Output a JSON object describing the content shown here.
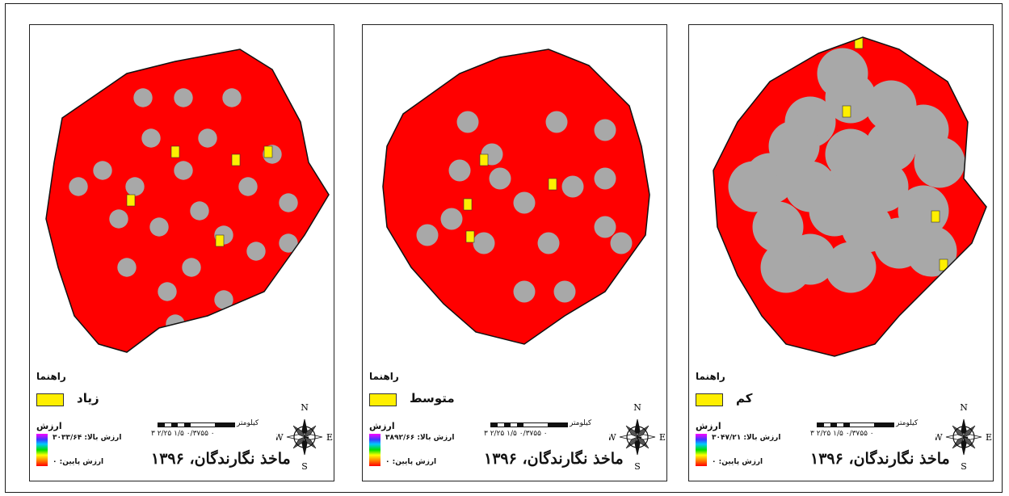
{
  "panels": [
    {
      "id": "high",
      "legend_title": "راهنما",
      "class_label": "زیاد",
      "value_title": "ارزش",
      "high_value": "ارزش بالا: ۳۰۳۳/۶۴",
      "low_value": "ارزش پایین: ۰",
      "scale_unit": "کیلومتر",
      "scale_ticks": "۰ ۰/۳۷۵۵ ۱/۵ ۲/۲۵ ۳",
      "source": "ماخذ نگارندگان، ۱۳۹۶",
      "compass": {
        "n": "N",
        "s": "S",
        "e": "E",
        "w": "W"
      },
      "icon": "north-arrow-compass-icon"
    },
    {
      "id": "medium",
      "legend_title": "راهنما",
      "class_label": "متوسط",
      "value_title": "ارزش",
      "high_value": "ارزش بالا: ۳۸۹۲/۶۶",
      "low_value": "ارزش پایین: ۰",
      "scale_unit": "کیلومتر",
      "scale_ticks": "۰ ۰/۳۷۵۵ ۱/۵ ۲/۲۵ ۳",
      "source": "ماخذ نگارندگان، ۱۳۹۶",
      "compass": {
        "n": "N",
        "s": "S",
        "e": "E",
        "w": "W"
      },
      "icon": "north-arrow-compass-icon"
    },
    {
      "id": "low",
      "legend_title": "راهنما",
      "class_label": "کم",
      "value_title": "ارزش",
      "high_value": "ارزش بالا: ۳۰۴۷/۲۱",
      "low_value": "ارزش پایین: ۰",
      "scale_unit": "کیلومتر",
      "scale_ticks": "۰ ۰/۳۷۵۵ ۱/۵ ۲/۲۵ ۳",
      "source": "ماخذ نگارندگان، ۱۳۹۶",
      "compass": {
        "n": "N",
        "s": "S",
        "e": "E",
        "w": "W"
      },
      "icon": "north-arrow-compass-icon"
    }
  ],
  "colors": {
    "legend_swatch": "#ffef00",
    "ramp": [
      "#ff00ff",
      "#3b3bff",
      "#00c8ff",
      "#00e000",
      "#ffff00",
      "#ff8800",
      "#ff0000"
    ],
    "core": "#a8a8a8"
  }
}
